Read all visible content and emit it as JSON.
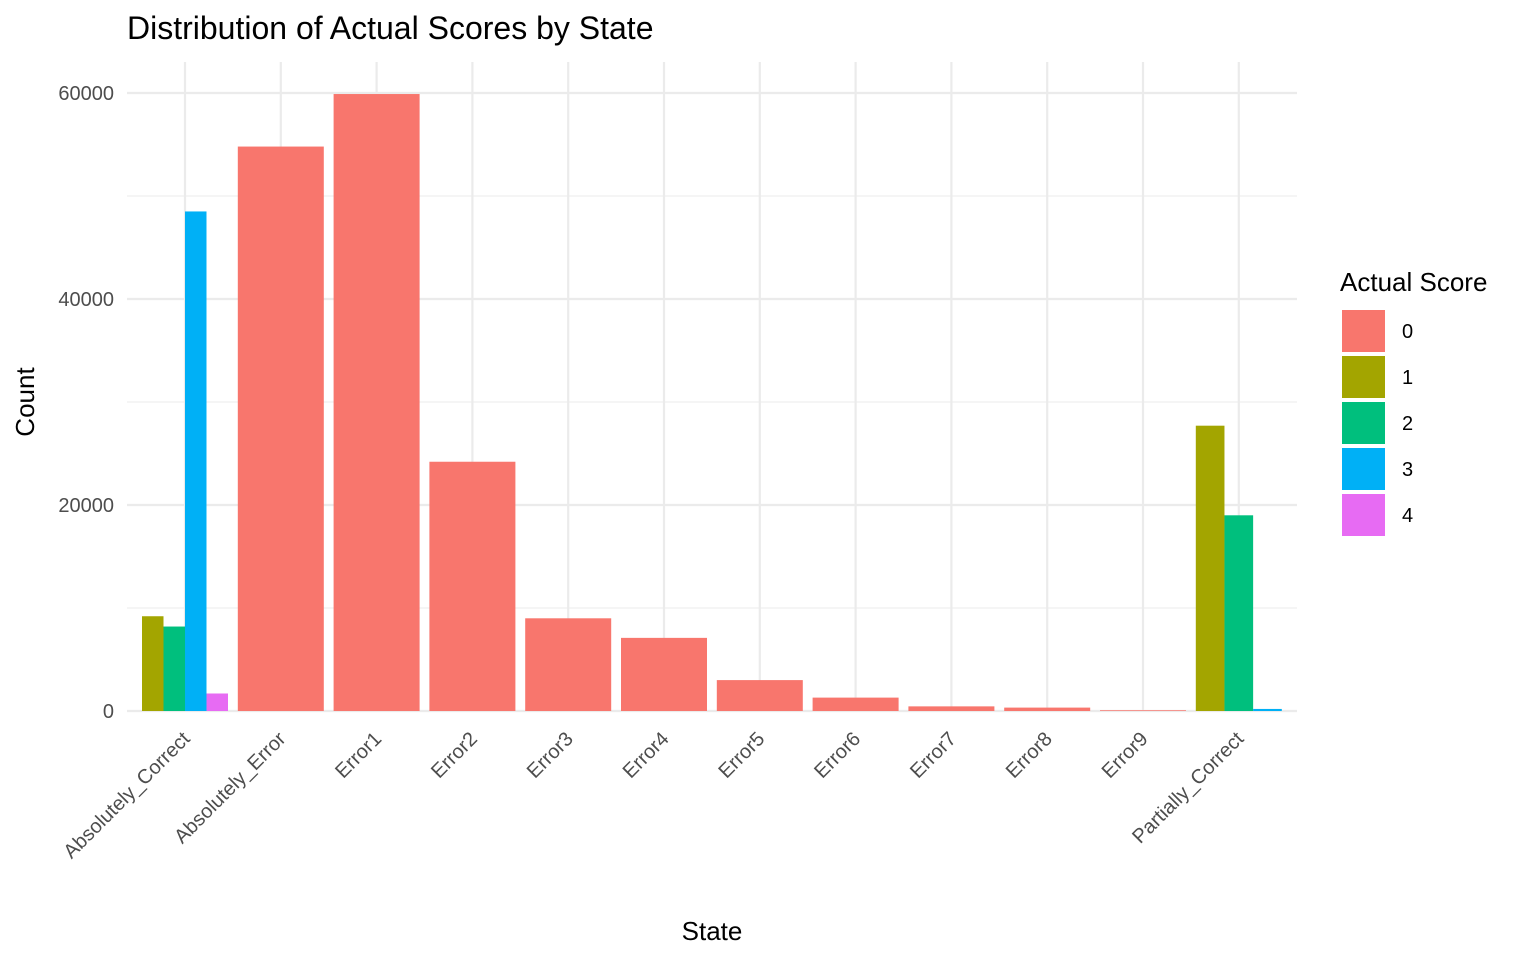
{
  "chart_data": {
    "type": "bar",
    "title": "Distribution of Actual Scores by State",
    "xlabel": "State",
    "ylabel": "Count",
    "ylim": [
      0,
      60000
    ],
    "yticks": [
      0,
      20000,
      40000,
      60000
    ],
    "grid": true,
    "legend": {
      "title": "Actual Score",
      "placement": "right"
    },
    "categories": [
      "Absolutely_Correct",
      "Absolutely_Error",
      "Error1",
      "Error2",
      "Error3",
      "Error4",
      "Error5",
      "Error6",
      "Error7",
      "Error8",
      "Error9",
      "Partially_Correct"
    ],
    "series": [
      {
        "name": "0",
        "color": "#F8766D",
        "values": [
          null,
          54800,
          59900,
          24200,
          9000,
          7100,
          3000,
          1300,
          450,
          330,
          70,
          null
        ]
      },
      {
        "name": "1",
        "color": "#A3A500",
        "values": [
          9200,
          null,
          null,
          null,
          null,
          null,
          null,
          null,
          null,
          null,
          null,
          27700
        ]
      },
      {
        "name": "2",
        "color": "#00BF7D",
        "values": [
          8200,
          null,
          null,
          null,
          null,
          null,
          null,
          null,
          null,
          null,
          null,
          19000
        ]
      },
      {
        "name": "3",
        "color": "#00B0F6",
        "values": [
          48500,
          null,
          null,
          null,
          null,
          null,
          null,
          null,
          null,
          null,
          null,
          200
        ]
      },
      {
        "name": "4",
        "color": "#E76BF3",
        "values": [
          1700,
          null,
          null,
          null,
          null,
          null,
          null,
          null,
          null,
          null,
          null,
          null
        ]
      }
    ]
  }
}
